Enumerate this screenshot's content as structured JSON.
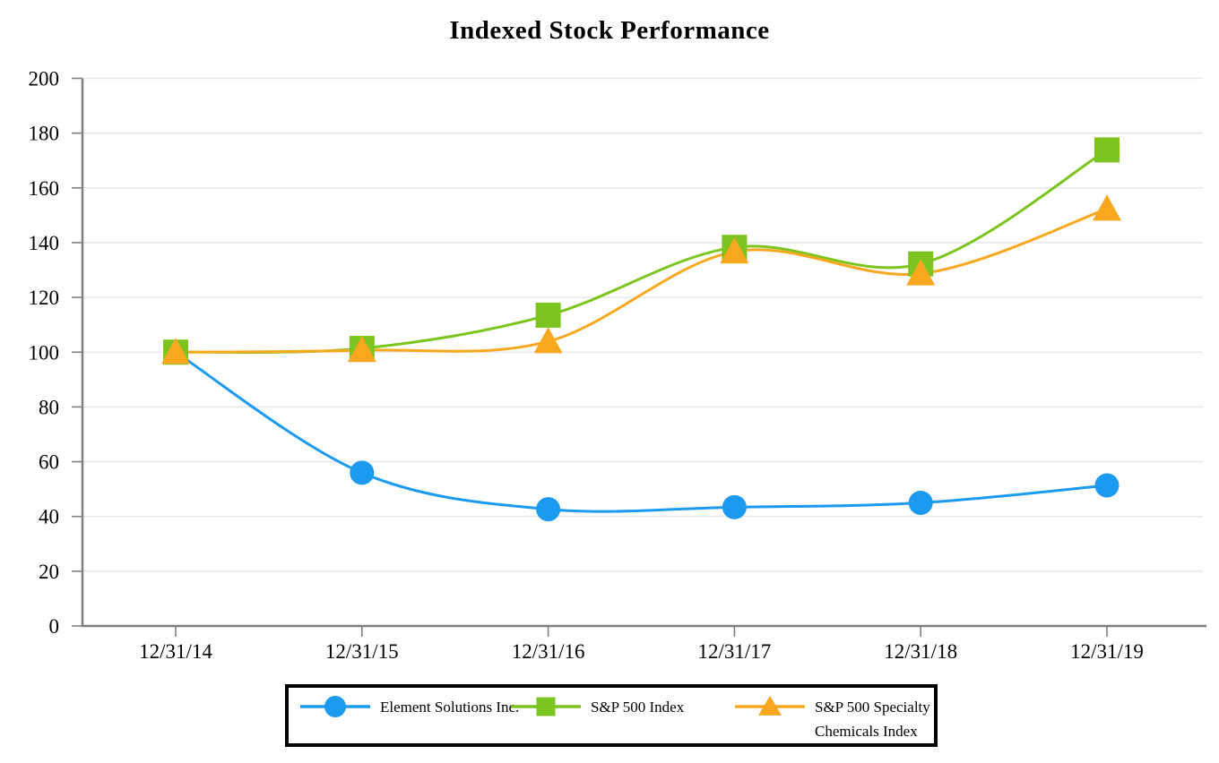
{
  "title": "Indexed Stock Performance",
  "colors": {
    "axis": "#808080",
    "grid": "#e9e9e9",
    "text": "#000000",
    "blue": "#1b9af0",
    "green": "#7cc41f",
    "orange": "#f8a81e"
  },
  "chart_data": {
    "type": "line",
    "title": "Indexed Stock Performance",
    "categories": [
      "12/31/14",
      "12/31/15",
      "12/31/16",
      "12/31/17",
      "12/31/18",
      "12/31/19"
    ],
    "series": [
      {
        "name": "Element Solutions Inc.",
        "color": "#1b9af0",
        "marker": "circle",
        "values": [
          100,
          55.95,
          42.64,
          43.39,
          44.98,
          51.35
        ]
      },
      {
        "name": "S&P 500 Index",
        "color": "#7cc41f",
        "marker": "square",
        "values": [
          100,
          101.38,
          113.51,
          138.29,
          132.23,
          173.86
        ]
      },
      {
        "name": "S&P 500 Specialty Chemicals Index",
        "color": "#f8a81e",
        "marker": "triangle",
        "values": [
          100,
          100.71,
          103.93,
          136.7,
          128.69,
          152.31
        ]
      }
    ],
    "xlabel": "",
    "ylabel": "",
    "ylim": [
      0,
      200
    ],
    "ytick_step": 20,
    "yticks": [
      0,
      20,
      40,
      60,
      80,
      100,
      120,
      140,
      160,
      180,
      200
    ],
    "grid": true,
    "legend_position": "bottom",
    "legend": {
      "entries": [
        {
          "series": 0,
          "lines": [
            "Element Solutions Inc."
          ]
        },
        {
          "series": 1,
          "lines": [
            "S&P 500 Index"
          ]
        },
        {
          "series": 2,
          "lines": [
            "S&P 500 Specialty",
            "Chemicals Index"
          ]
        }
      ]
    }
  }
}
